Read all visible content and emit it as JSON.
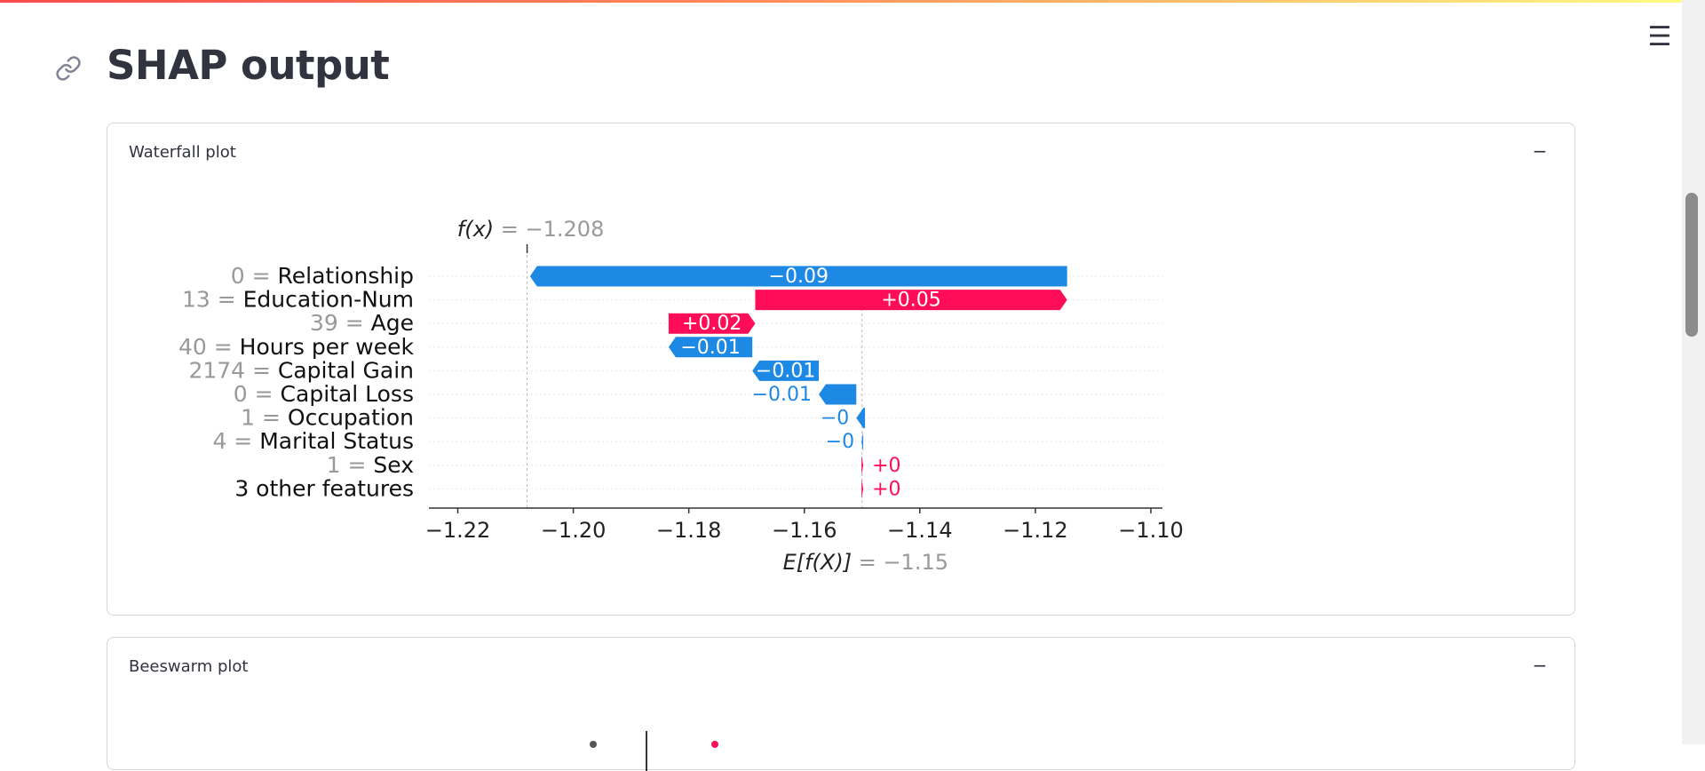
{
  "app": {
    "page_title": "SHAP output",
    "menu_icon": "hamburger-menu-icon",
    "link_icon": "link-icon",
    "colors": {
      "accent_gradient": [
        "#ff4b4b",
        "#ff8c5a",
        "#fffd80"
      ],
      "positive": "#ff0d57",
      "negative": "#1e88e5"
    }
  },
  "expanders": [
    {
      "label": "Waterfall plot",
      "collapse_symbol": "−",
      "expanded": true
    },
    {
      "label": "Beeswarm plot",
      "collapse_symbol": "−",
      "expanded": true
    }
  ],
  "chart_data": {
    "type": "bar",
    "subtype": "shap-waterfall",
    "fx_label": "f(x)",
    "fx_value_text": "= −1.208",
    "fx": -1.208,
    "base_label": "E[f(X)]",
    "base_value_text": "= −1.15",
    "base_value": -1.15,
    "xlim": [
      -1.225,
      -1.098
    ],
    "xticks": [
      -1.22,
      -1.2,
      -1.18,
      -1.16,
      -1.14,
      -1.12,
      -1.1
    ],
    "xtick_labels": [
      "−1.22",
      "−1.20",
      "−1.18",
      "−1.16",
      "−1.14",
      "−1.12",
      "−1.10"
    ],
    "grid": false,
    "features": [
      {
        "value": "0 =",
        "name": "Relationship",
        "start": -1.1145,
        "end": -1.2075,
        "label": "−0.09"
      },
      {
        "value": "13 =",
        "name": "Education-Num",
        "start": -1.1685,
        "end": -1.1145,
        "label": "+0.05"
      },
      {
        "value": "39 =",
        "name": "Age",
        "start": -1.1835,
        "end": -1.1685,
        "label": "+0.02"
      },
      {
        "value": "40 =",
        "name": "Hours per week",
        "start": -1.169,
        "end": -1.1835,
        "label": "−0.01"
      },
      {
        "value": "2174 =",
        "name": "Capital Gain",
        "start": -1.1575,
        "end": -1.169,
        "label": "−0.01"
      },
      {
        "value": "0 =",
        "name": "Capital Loss",
        "start": -1.151,
        "end": -1.1575,
        "label": "−0.01"
      },
      {
        "value": "1 =",
        "name": "Occupation",
        "start": -1.1495,
        "end": -1.151,
        "label": "−0"
      },
      {
        "value": "4 =",
        "name": "Marital Status",
        "start": -1.1498,
        "end": -1.1501,
        "label": "−0"
      },
      {
        "value": "1 =",
        "name": "Sex",
        "start": -1.1501,
        "end": -1.1498,
        "label": "+0"
      },
      {
        "value": "",
        "name": "3 other features",
        "start": -1.1501,
        "end": -1.1498,
        "label": "+0"
      }
    ]
  }
}
